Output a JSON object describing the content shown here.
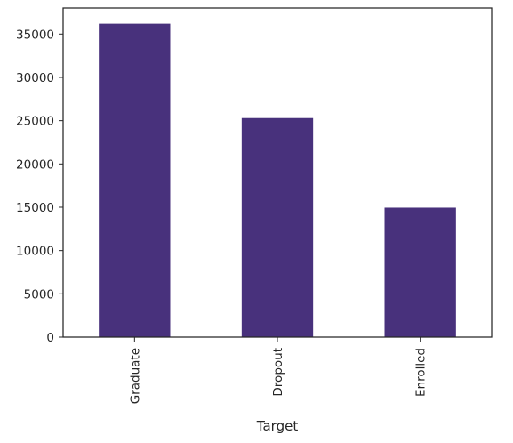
{
  "chart_data": {
    "type": "bar",
    "title": "",
    "xlabel": "Target",
    "ylabel": "",
    "categories": [
      "Graduate",
      "Dropout",
      "Enrolled"
    ],
    "values": [
      36200,
      25300,
      14950
    ],
    "ylim": [
      0,
      38010
    ],
    "yticks": [
      0,
      5000,
      10000,
      15000,
      20000,
      25000,
      30000,
      35000
    ],
    "ytick_labels": [
      "0",
      "5000",
      "10000",
      "15000",
      "20000",
      "25000",
      "30000",
      "35000"
    ],
    "grid": false,
    "legend": "none",
    "colors": {
      "bar": "#48317c",
      "axis": "#262626",
      "text": "#262626",
      "background": "#ffffff"
    }
  }
}
